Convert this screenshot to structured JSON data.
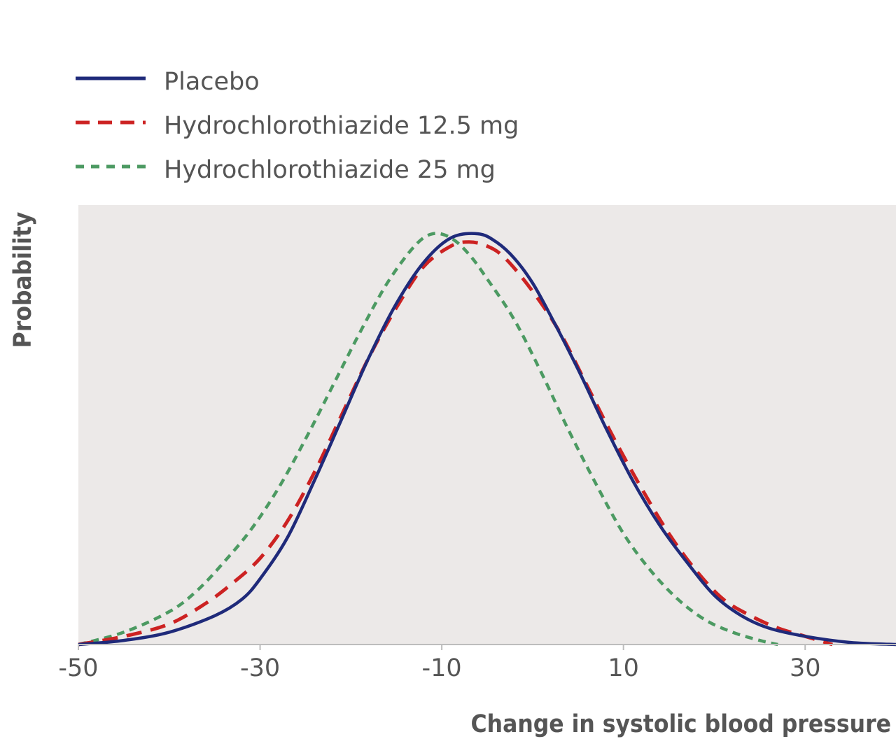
{
  "chart_data": {
    "type": "line",
    "title": "",
    "xlabel": "Change in systolic blood pressure",
    "ylabel": "Probability",
    "xlim": [
      -50,
      40
    ],
    "ylim": [
      0,
      1.07
    ],
    "x_ticks": [
      "-50",
      "-30",
      "-10",
      "10",
      "30"
    ],
    "x_tick_values": [
      -50,
      -30,
      -10,
      10,
      30
    ],
    "grid": false,
    "legend_position": "top-left",
    "background": "#ece9e8",
    "series": [
      {
        "name": "Placebo",
        "color": "#1f2a7a",
        "dash": "solid",
        "x": [
          -50,
          -45,
          -40,
          -35,
          -32,
          -30,
          -27,
          -24,
          -21,
          -18,
          -15,
          -12,
          -9,
          -6,
          -4,
          -2,
          0,
          2,
          5,
          8,
          11,
          14,
          17,
          20,
          23,
          26,
          30,
          35,
          40
        ],
        "y": [
          0,
          0.01,
          0.03,
          0.07,
          0.11,
          0.16,
          0.26,
          0.4,
          0.55,
          0.7,
          0.83,
          0.93,
          0.99,
          1.0,
          0.98,
          0.94,
          0.88,
          0.8,
          0.67,
          0.53,
          0.4,
          0.29,
          0.2,
          0.12,
          0.07,
          0.04,
          0.02,
          0.005,
          0
        ]
      },
      {
        "name": "Hydrochlorothiazide 12.5 mg",
        "color": "#cc2222",
        "dash": "dashed",
        "x": [
          -50,
          -45,
          -40,
          -36,
          -33,
          -30,
          -27,
          -24,
          -21,
          -18,
          -15,
          -12,
          -9,
          -7,
          -5,
          -3,
          0,
          3,
          6,
          9,
          12,
          15,
          18,
          21,
          24,
          27,
          30,
          33
        ],
        "y": [
          0,
          0.02,
          0.05,
          0.1,
          0.15,
          0.21,
          0.3,
          0.42,
          0.56,
          0.7,
          0.82,
          0.92,
          0.97,
          0.98,
          0.97,
          0.94,
          0.86,
          0.76,
          0.63,
          0.5,
          0.38,
          0.27,
          0.18,
          0.11,
          0.07,
          0.04,
          0.02,
          0
        ]
      },
      {
        "name": "Hydrochlorothiazide 25 mg",
        "color": "#4c9a62",
        "dash": "dotted",
        "x": [
          -50,
          -45,
          -40,
          -37,
          -34,
          -31,
          -28,
          -25,
          -22,
          -19,
          -16,
          -13,
          -11,
          -9,
          -7,
          -5,
          -2,
          1,
          4,
          7,
          10,
          13,
          16,
          19,
          22,
          25,
          27
        ],
        "y": [
          0,
          0.03,
          0.08,
          0.13,
          0.2,
          0.28,
          0.38,
          0.5,
          0.63,
          0.76,
          0.88,
          0.97,
          1.0,
          0.99,
          0.95,
          0.89,
          0.79,
          0.66,
          0.52,
          0.39,
          0.27,
          0.18,
          0.11,
          0.06,
          0.03,
          0.01,
          0
        ]
      }
    ]
  }
}
